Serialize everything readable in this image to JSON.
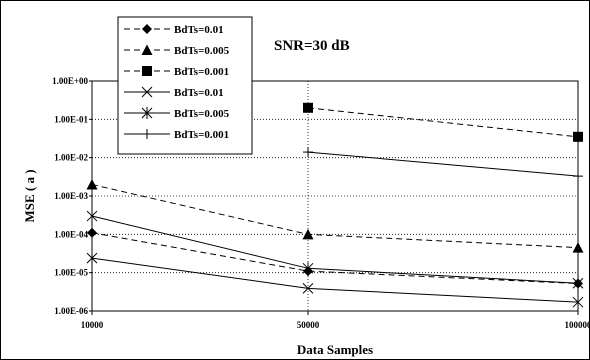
{
  "chart_data": {
    "type": "line",
    "annotation": "SNR=30 dB",
    "xlabel": "Data Samples",
    "ylabel": "MSE ( a )",
    "x": [
      10000,
      50000,
      100000
    ],
    "x_tick_labels": [
      "10000",
      "50000",
      "100000"
    ],
    "y_scale": "log",
    "ylim": [
      1e-06,
      1
    ],
    "y_tick_values": [
      1,
      0.1,
      0.01,
      0.001,
      0.0001,
      1e-05,
      1e-06
    ],
    "y_tick_labels": [
      "1.00E+00",
      "1.00E-01",
      "1.00E-02",
      "1.00E-03",
      "1.00E-04",
      "1.00E-05",
      "1.00E-06"
    ],
    "grid": "dotted",
    "legend_position": "top-left",
    "series": [
      {
        "name": "BdTs=0.01",
        "values": [
          0.00011,
          1.1e-05,
          5.2e-06
        ],
        "line": "dashed",
        "marker": "diamond"
      },
      {
        "name": "BdTs=0.005",
        "values": [
          0.002,
          0.0001,
          4.5e-05
        ],
        "line": "dashed",
        "marker": "triangle"
      },
      {
        "name": "BdTs=0.001",
        "values": [
          null,
          0.2,
          0.035
        ],
        "line": "dashed",
        "marker": "square"
      },
      {
        "name": "BdTs=0.01",
        "values": [
          2.4e-05,
          3.9e-06,
          1.7e-06
        ],
        "line": "solid",
        "marker": "x"
      },
      {
        "name": "BdTs=0.005",
        "values": [
          0.0003,
          1.3e-05,
          5.3e-06
        ],
        "line": "solid",
        "marker": "star"
      },
      {
        "name": "BdTs=0.001",
        "values": [
          null,
          0.014,
          0.0033
        ],
        "line": "solid",
        "marker": "plus"
      }
    ]
  }
}
